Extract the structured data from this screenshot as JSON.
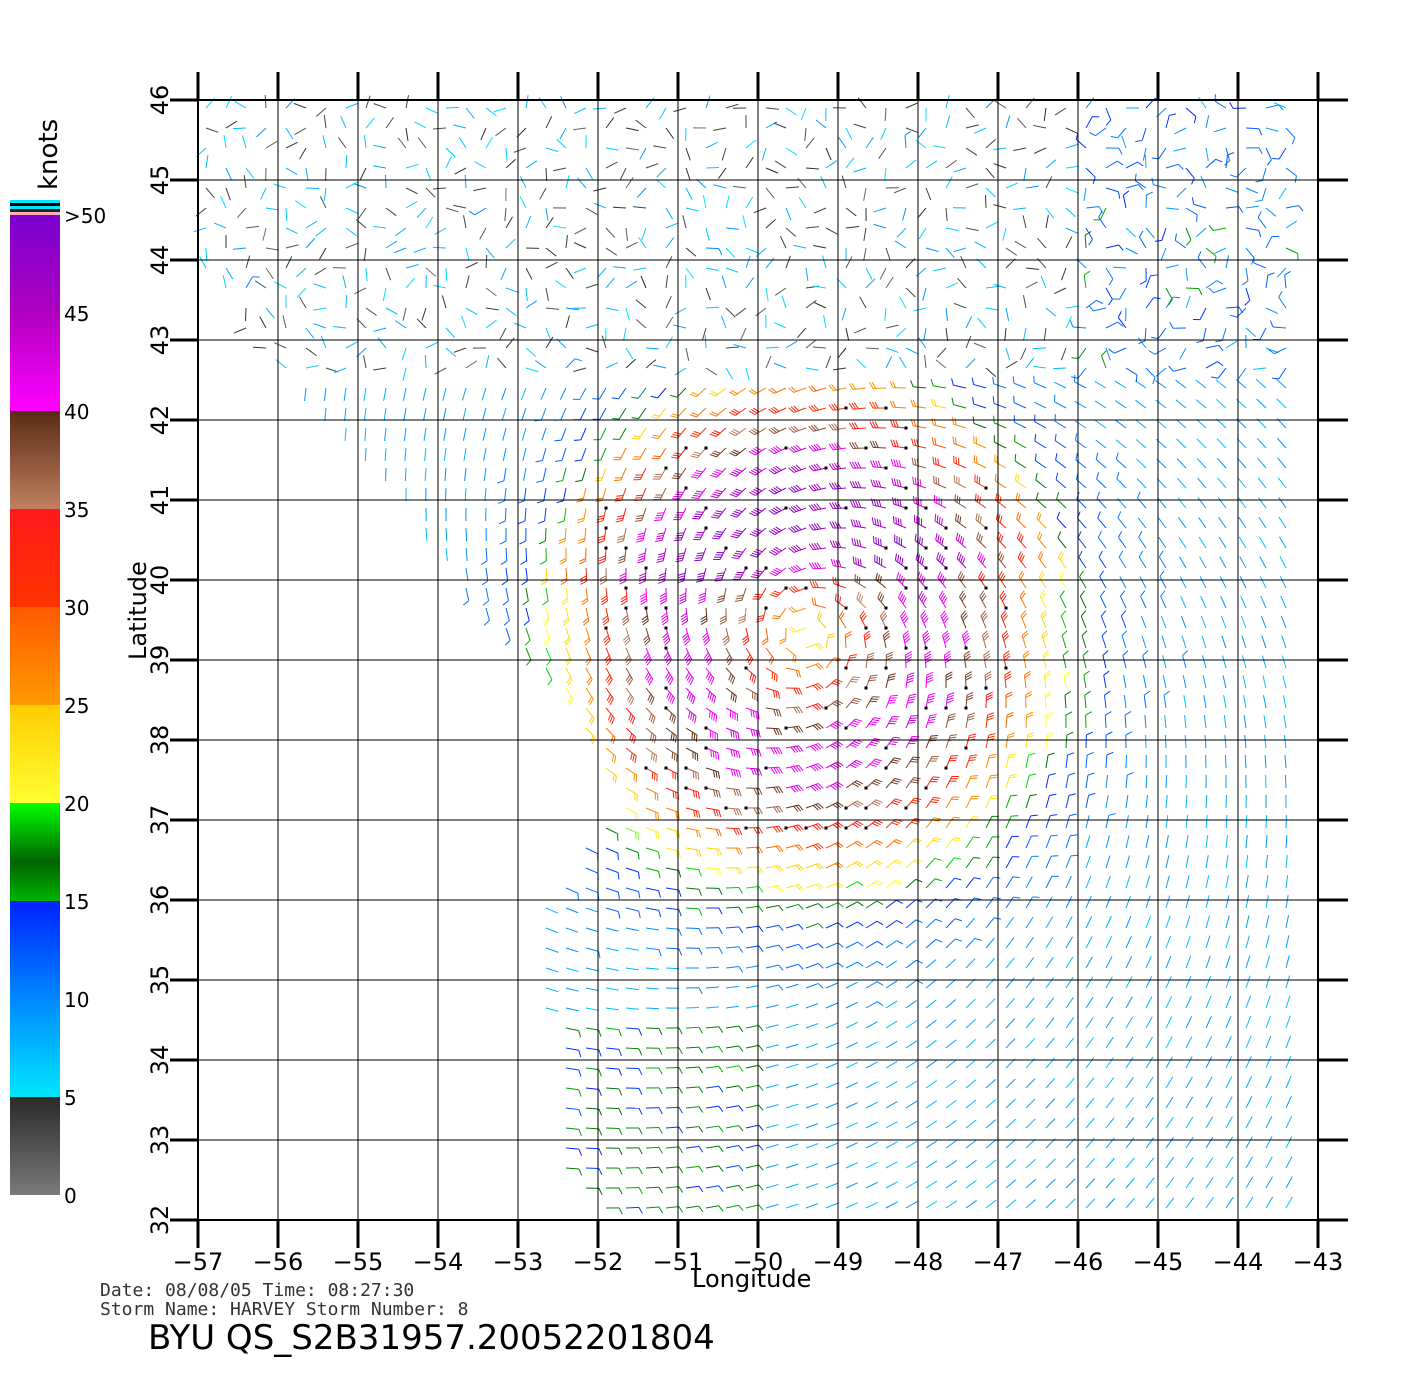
{
  "axes": {
    "xlabel": "Longitude",
    "ylabel": "Latitude",
    "x_ticks": [
      "−57",
      "−56",
      "−55",
      "−54",
      "−53",
      "−52",
      "−51",
      "−50",
      "−49",
      "−48",
      "−47",
      "−46",
      "−45",
      "−44",
      "−43"
    ],
    "y_ticks": [
      "32",
      "33",
      "34",
      "35",
      "36",
      "37",
      "38",
      "39",
      "40",
      "41",
      "42",
      "43",
      "44",
      "45",
      "46"
    ],
    "xlim": [
      -57,
      -43
    ],
    "ylim": [
      32,
      46
    ]
  },
  "legend": {
    "units": "knots",
    "labels": [
      "0",
      "5",
      "10",
      "15",
      "20",
      "25",
      "30",
      "35",
      "40",
      "45",
      ">50"
    ],
    "colors": {
      "calm": "#7a7a7a",
      "light": "#00e6ff",
      "moderate": "#0022ff",
      "fresh": "#00b400",
      "strong": "#ffcc00",
      "gale": "#ff5a00",
      "storm": "#ff1a1a",
      "violent": "#5a2a14",
      "extreme": "#ff00ff",
      "max": "#7a00d0"
    }
  },
  "info": {
    "line1": "Date: 08/08/05   Time: 08:27:30",
    "line2": "Storm Name: HARVEY   Storm Number: 8",
    "file_id": "BYU QS_S2B31957.20052201804"
  },
  "chart_data": {
    "type": "map",
    "title": "",
    "xlabel": "Longitude",
    "ylabel": "Latitude",
    "xlim": [
      -57,
      -43
    ],
    "ylim": [
      32,
      46
    ],
    "grid": true,
    "field": "wind barbs",
    "storm_center": {
      "lon": -49.4,
      "lat": 39.3
    },
    "max_wind_knots": 50,
    "colorbar_units": "knots",
    "colorbar_range": [
      0,
      50
    ]
  }
}
